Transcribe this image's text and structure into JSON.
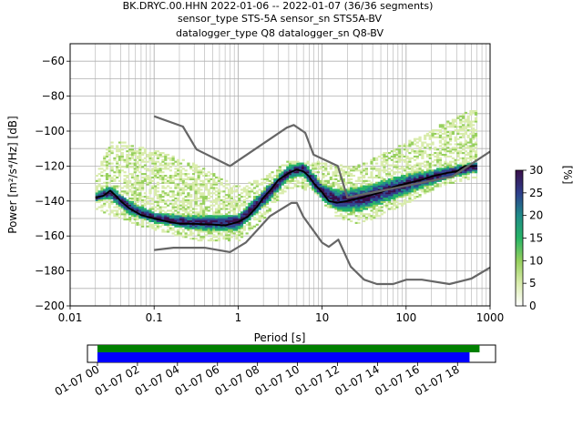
{
  "header": {
    "line1": "BK.DRYC.00.HHN   2022-01-06 -- 2022-01-07  (36/36 segments)",
    "line2": "sensor_type STS-5A sensor_sn STS5A-BV",
    "line3": "datalogger_type Q8 datalogger_sn Q8-BV"
  },
  "colorbar": {
    "label": "[%]",
    "ticks": [
      "0",
      "5",
      "10",
      "15",
      "20",
      "25",
      "30"
    ],
    "range": [
      0,
      30
    ]
  },
  "timeline": {
    "ticks": [
      "01-07 00",
      "01-07 02",
      "01-07 04",
      "01-07 06",
      "01-07 08",
      "01-07 10",
      "01-07 12",
      "01-07 14",
      "01-07 16",
      "01-07 18"
    ],
    "green_bar_color": "#008000",
    "blue_bar_color": "#0000ff",
    "green_hours": [
      0,
      19.1
    ],
    "blue_hours": [
      0,
      18.6
    ],
    "axis_hours": [
      -0.5,
      19.9
    ]
  },
  "chart_data": {
    "type": "line",
    "xscale": "log",
    "xlim": [
      0.01,
      1000
    ],
    "ylim": [
      -200,
      -50
    ],
    "xlabel": "Period [s]",
    "ylabel": "Power [m²/s⁴/Hz] [dB]",
    "xticks": [
      "0.01",
      "0.1",
      "1",
      "10",
      "100",
      "1000"
    ],
    "yticks": [
      "−200",
      "−180",
      "−160",
      "−140",
      "−120",
      "−100",
      "−80",
      "−60"
    ],
    "grid": true,
    "series": [
      {
        "role": "mean",
        "color": "#000000",
        "x": [
          0.02,
          0.025,
          0.03,
          0.035,
          0.04,
          0.05,
          0.07,
          0.1,
          0.15,
          0.2,
          0.3,
          0.5,
          0.7,
          1,
          1.3,
          1.7,
          2,
          2.5,
          3,
          4,
          5,
          6,
          7,
          8,
          10,
          12,
          15,
          20,
          30,
          50,
          70,
          100,
          150,
          200,
          300,
          400,
          500,
          700
        ],
        "y": [
          -138,
          -137,
          -134,
          -137,
          -140,
          -144,
          -148,
          -150,
          -152,
          -153,
          -153,
          -153.5,
          -154,
          -152,
          -149,
          -143,
          -138,
          -133,
          -128,
          -124,
          -122,
          -123,
          -126,
          -130,
          -135,
          -140,
          -141,
          -140,
          -138,
          -135,
          -132,
          -130,
          -128,
          -126,
          -124,
          -123,
          -120,
          -120
        ]
      },
      {
        "role": "high-noise-model",
        "color": "#666666",
        "x": [
          0.1,
          0.22,
          0.32,
          0.8,
          3.8,
          4.6,
          6.3,
          7.9,
          15.4,
          20,
          354.8,
          10000
        ],
        "y": [
          -91.5,
          -97.4,
          -110.5,
          -120,
          -98,
          -96.5,
          -101,
          -113.5,
          -120,
          -138,
          -126,
          -80
        ]
      },
      {
        "role": "low-noise-model",
        "color": "#666666",
        "x": [
          0.1,
          0.17,
          0.4,
          0.8,
          1.24,
          2.4,
          4.3,
          5,
          6,
          10,
          12,
          15.6,
          21.9,
          31.6,
          45,
          70,
          101,
          154,
          328,
          600,
          1000
        ],
        "y": [
          -168,
          -166.7,
          -166.7,
          -169.2,
          -163.7,
          -148.6,
          -141.1,
          -141.1,
          -149,
          -163.8,
          -166.2,
          -162.1,
          -177.5,
          -185,
          -187.5,
          -187.5,
          -185,
          -185,
          -187.5,
          -184.4,
          -178
        ]
      }
    ],
    "density": {
      "colormap": [
        "#ffffff",
        "#d9ecac",
        "#97d05e",
        "#27b466",
        "#208a8a",
        "#2e3f8c",
        "#3a0f4a"
      ],
      "core_upper": [
        [
          0.02,
          -136
        ],
        [
          0.03,
          -132
        ],
        [
          0.05,
          -140
        ],
        [
          0.1,
          -147
        ],
        [
          0.3,
          -149
        ],
        [
          1,
          -148
        ],
        [
          2,
          -134
        ],
        [
          4,
          -120
        ],
        [
          6,
          -118
        ],
        [
          10,
          -130
        ],
        [
          15,
          -134
        ],
        [
          30,
          -132
        ],
        [
          100,
          -125
        ],
        [
          300,
          -121
        ],
        [
          700,
          -118
        ]
      ],
      "core_lower": [
        [
          0.02,
          -141
        ],
        [
          0.03,
          -139
        ],
        [
          0.05,
          -148
        ],
        [
          0.1,
          -153
        ],
        [
          0.3,
          -157
        ],
        [
          1,
          -157
        ],
        [
          2,
          -144
        ],
        [
          4,
          -128
        ],
        [
          6,
          -126
        ],
        [
          10,
          -140
        ],
        [
          15,
          -146
        ],
        [
          30,
          -146
        ],
        [
          100,
          -137
        ],
        [
          300,
          -128
        ],
        [
          700,
          -124
        ]
      ],
      "halo_upper": [
        [
          0.02,
          -128
        ],
        [
          0.03,
          -106
        ],
        [
          0.1,
          -112
        ],
        [
          0.3,
          -120
        ],
        [
          1,
          -133
        ],
        [
          2,
          -128
        ],
        [
          4,
          -118
        ],
        [
          8,
          -118
        ],
        [
          15,
          -121
        ],
        [
          30,
          -120
        ],
        [
          100,
          -108
        ],
        [
          300,
          -96
        ],
        [
          700,
          -88
        ]
      ],
      "halo_lower": [
        [
          0.02,
          -144
        ],
        [
          0.05,
          -152
        ],
        [
          0.3,
          -162
        ],
        [
          1,
          -163
        ],
        [
          2,
          -150
        ],
        [
          4,
          -132
        ],
        [
          8,
          -134
        ],
        [
          15,
          -150
        ],
        [
          30,
          -153
        ],
        [
          100,
          -141
        ],
        [
          300,
          -130
        ],
        [
          700,
          -126
        ]
      ]
    }
  }
}
